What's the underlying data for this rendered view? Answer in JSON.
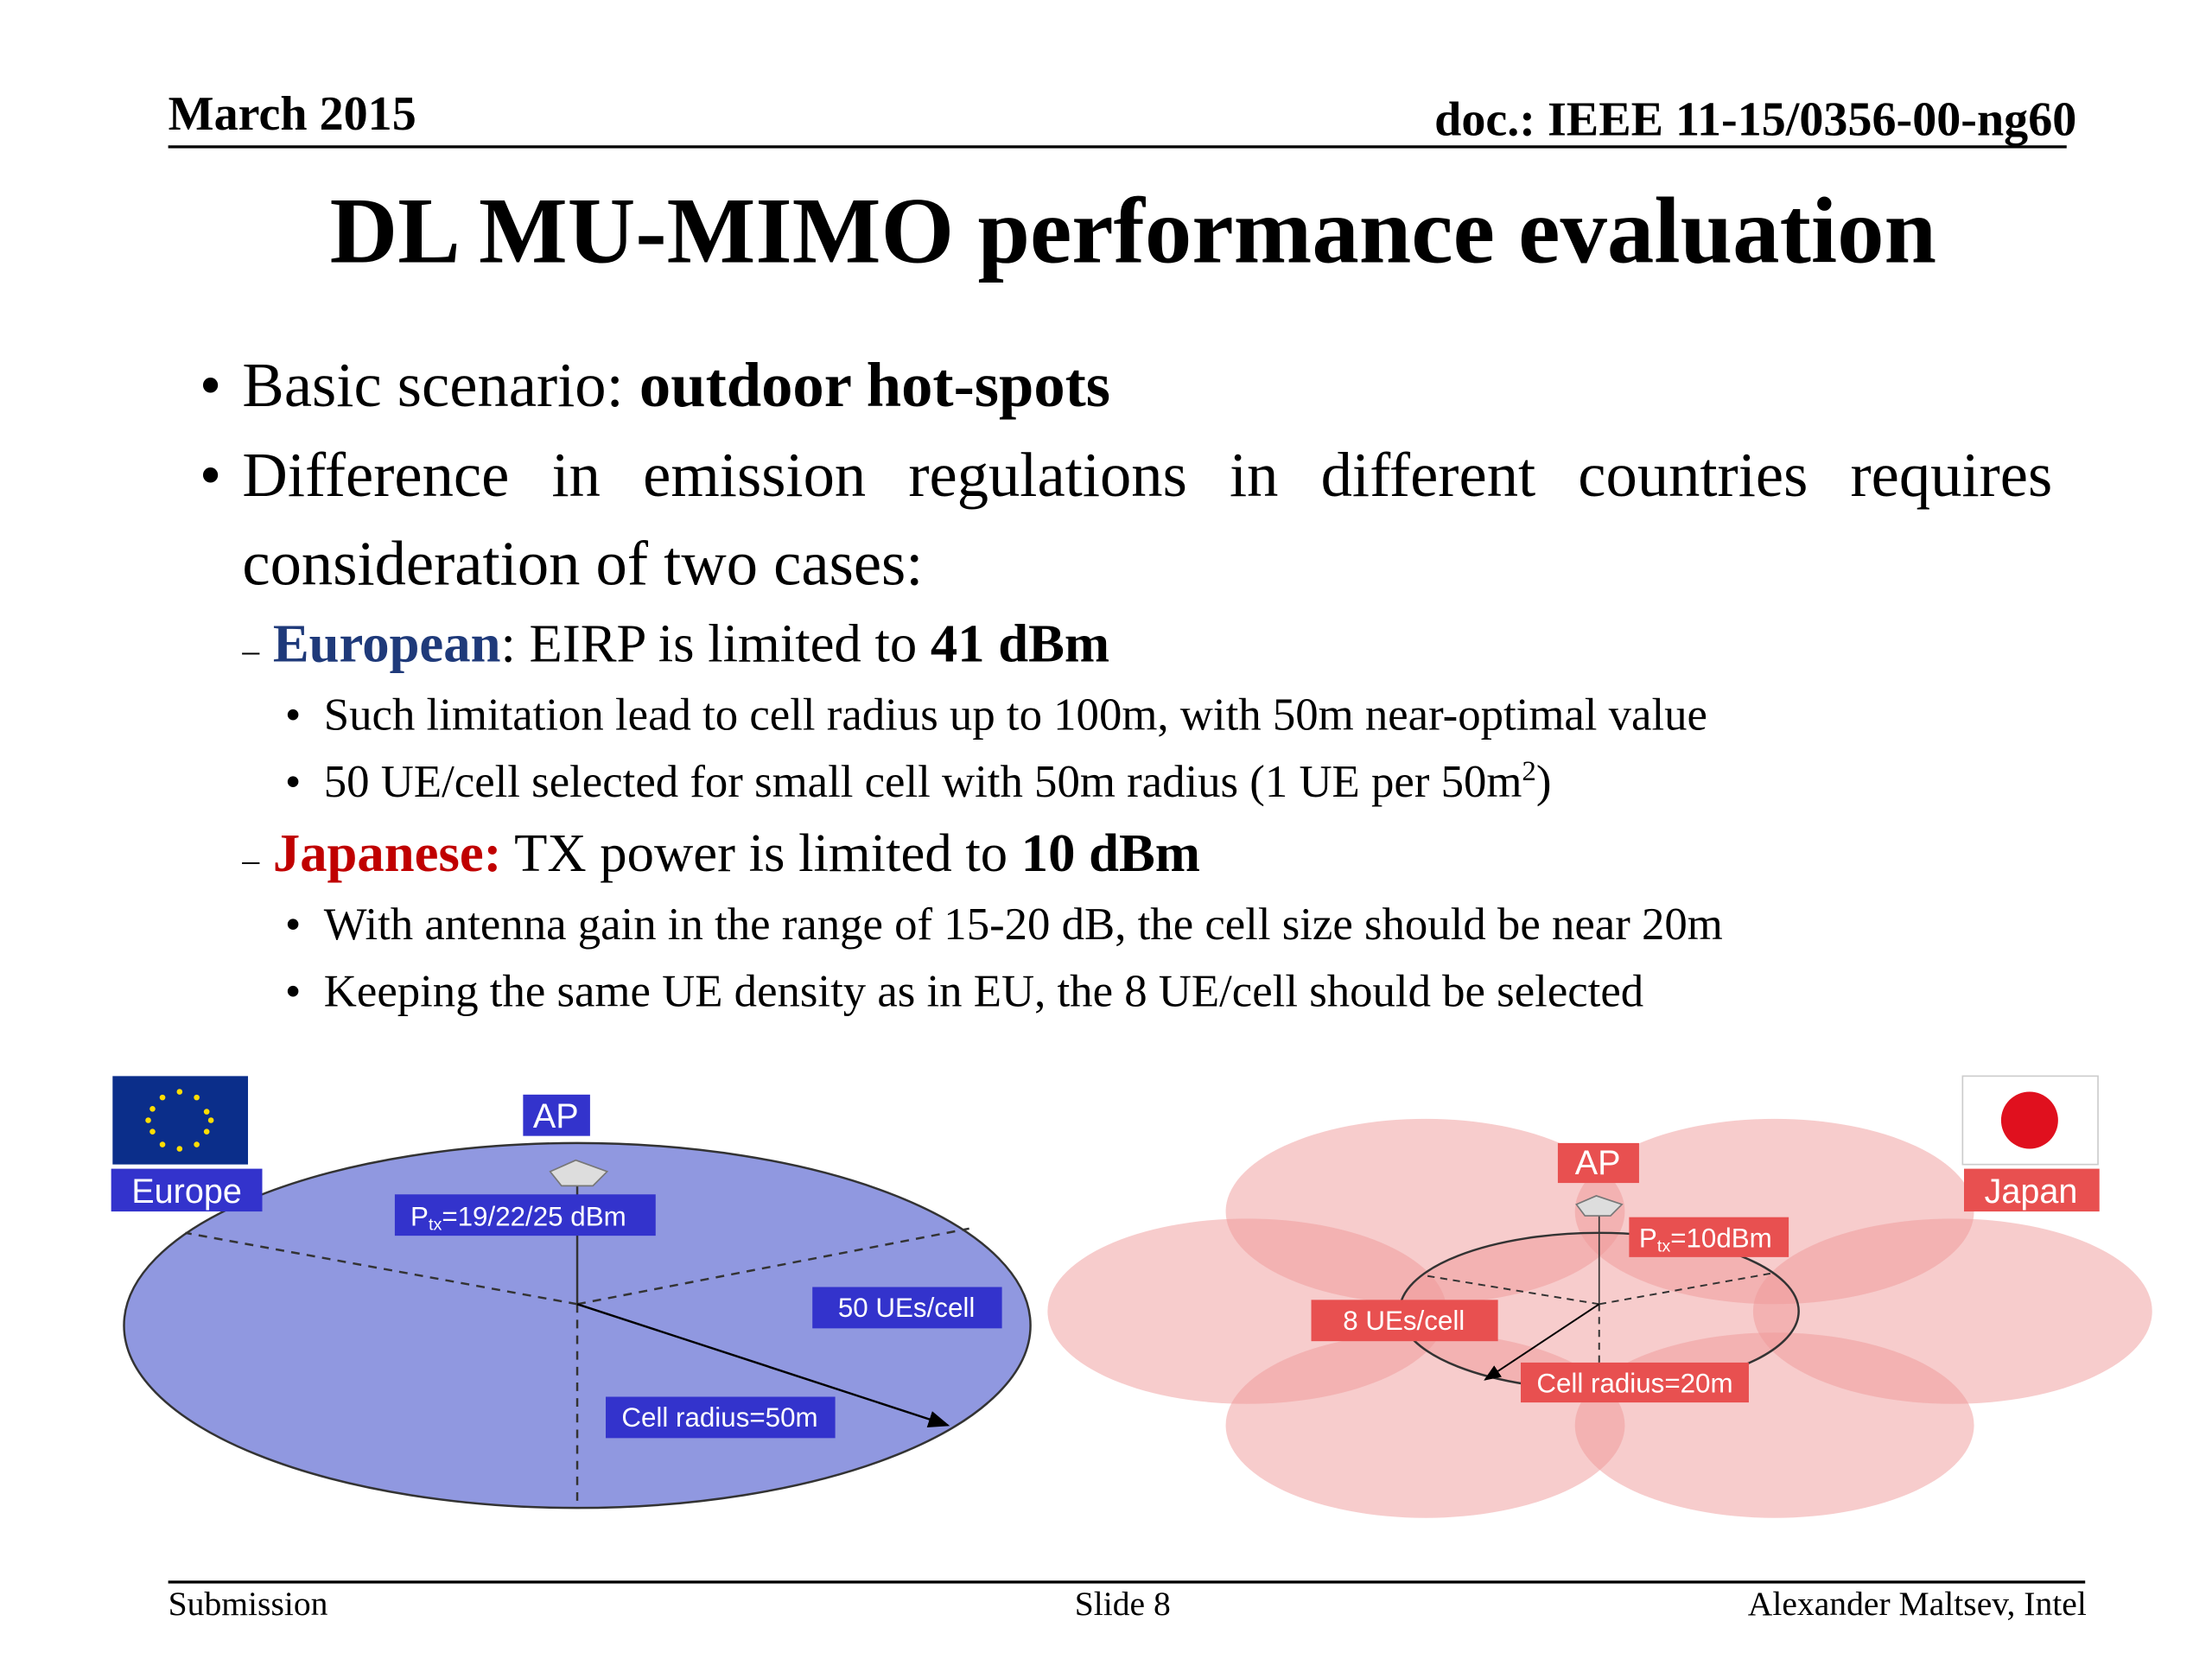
{
  "header": {
    "date": "March 2015",
    "doc": "doc.: IEEE 11-15/0356-00-ng60"
  },
  "title": "DL MU-MIMO performance evaluation",
  "bullets": [
    {
      "text": "Basic scenario: ",
      "bold": "outdoor hot-spots"
    },
    {
      "text": "Difference in emission regulations in different countries requires consideration of two cases:"
    },
    {
      "lead": "European",
      "text": ": EIRP is limited to ",
      "bold": "41 dBm",
      "sub": [
        "Such limitation lead to cell radius up to 100m, with 50m near-optimal value",
        {
          "text": "50 UE/cell selected for small cell with 50m radius (1 UE per 50m",
          "sup": "2",
          "tail": ")"
        }
      ]
    },
    {
      "lead": "Japanese:",
      "text": " TX power is limited to ",
      "bold": "10 dBm",
      "sub": [
        "With antenna gain in the range of 15-20 dB, the cell size should be near 20m",
        "Keeping the same UE density as in EU, the 8 UE/cell should be selected"
      ]
    }
  ],
  "diagrams": {
    "europe": {
      "region": "Europe",
      "ap": "AP",
      "power": {
        "p": "P",
        "sub": "tx",
        "rest": "=19/22/25 dBm"
      },
      "ues": "50 UEs/cell",
      "radius": "Cell radius=50m"
    },
    "japan": {
      "region": "Japan",
      "ap": "AP",
      "power": {
        "p": "P",
        "sub": "tx",
        "rest": "=10dBm"
      },
      "ues": "8 UEs/cell",
      "radius": "Cell radius=20m"
    }
  },
  "footer": {
    "left": "Submission",
    "center": "Slide 8",
    "right": "Alexander Maltsev, Intel"
  }
}
